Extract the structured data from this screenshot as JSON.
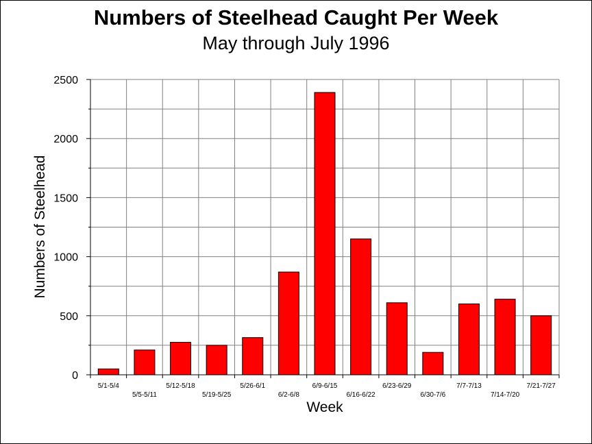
{
  "chart_data": {
    "type": "bar",
    "title": "Numbers of Steelhead Caught Per Week",
    "subtitle": "May through July 1996",
    "xlabel": "Week",
    "ylabel": "Numbers of Steelhead",
    "categories": [
      "5/1-5/4",
      "5/5-5/11",
      "5/12-5/18",
      "5/19-5/25",
      "5/26-6/1",
      "6/2-6/8",
      "6/9-6/15",
      "6/16-6/22",
      "6/23-6/29",
      "6/30-7/6",
      "7/7-7/13",
      "7/14-7/20",
      "7/21-7/27"
    ],
    "values": [
      50,
      210,
      275,
      250,
      315,
      870,
      2390,
      1150,
      610,
      190,
      600,
      640,
      500
    ],
    "ylim": [
      0,
      2500
    ],
    "yticks": [
      0,
      500,
      1000,
      1500,
      2000,
      2500
    ],
    "grid": true,
    "bar_color": "#ff0000"
  }
}
